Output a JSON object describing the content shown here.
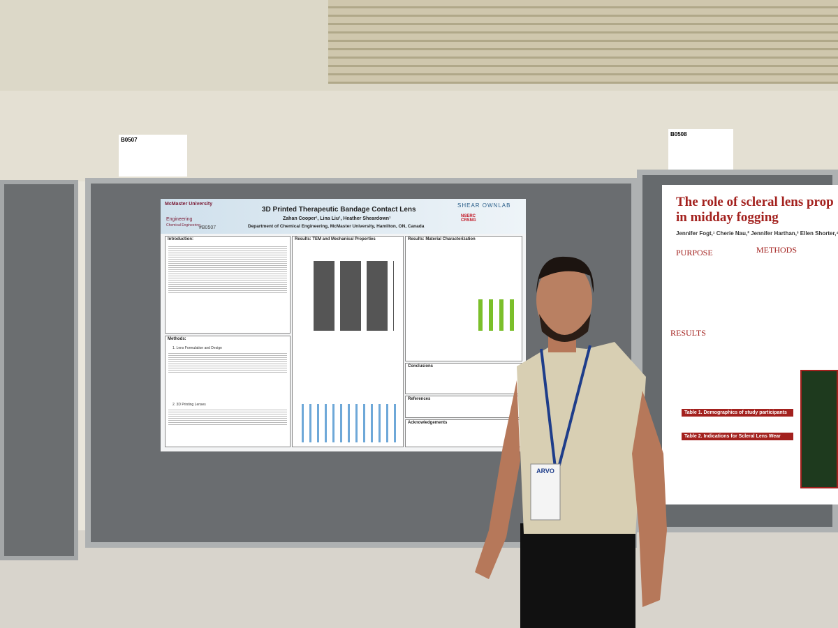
{
  "signs": [
    "B0507",
    "B0508"
  ],
  "left_poster": {
    "title": "3D Printed Therapeutic Bandage Contact Lens",
    "authors": "Zahan Cooper¹, Lina Liu¹, Heather Sheardown¹",
    "affiliation": "Department of Chemical Engineering, McMaster University, Hamilton, ON, Canada",
    "poster_id": "#B0507",
    "lab": "SHEAR OWNLAB",
    "university": "McMaster University",
    "faculty": "Engineering",
    "department": "Chemical Engineering",
    "funder": "NSERC CRSNG",
    "sections": [
      "Introduction:",
      "Methods:",
      "Results: TEM and Mechanical Properties",
      "Results: Material Characterization",
      "Conclusions",
      "References",
      "Acknowledgements"
    ],
    "subsections": [
      "1. Lens Formulation and Design",
      "2. 3D Printing Lenses"
    ]
  },
  "right_poster": {
    "title_line1": "The role of scleral lens prop",
    "title_line2": "in midday fogging",
    "authors": "Jennifer Fogt,¹ Cherie Nau,² Jennifer Harthan,³ Ellen Shorter,⁴ A",
    "sections": [
      "PURPOSE",
      "METHODS",
      "RESULTS"
    ],
    "tables": [
      "Table 1. Demographics of study participants",
      "Table 2. Indications for Scleral Lens Wear"
    ]
  },
  "badge": "ARVO"
}
